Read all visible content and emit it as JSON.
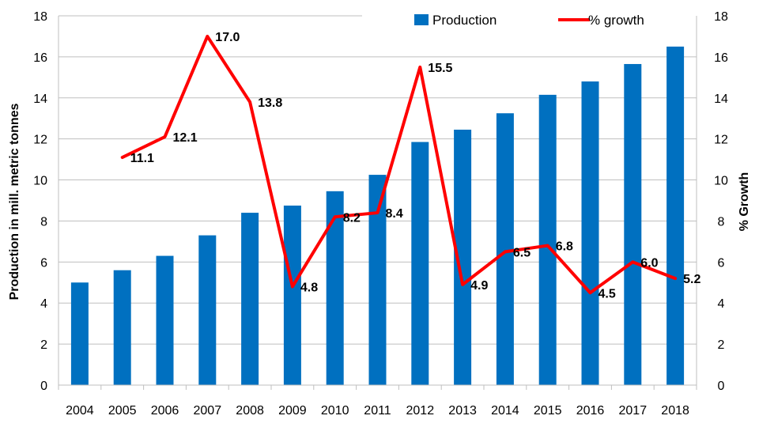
{
  "chart_data": {
    "type": "bar",
    "categories": [
      "2004",
      "2005",
      "2006",
      "2007",
      "2008",
      "2009",
      "2010",
      "2011",
      "2012",
      "2013",
      "2014",
      "2015",
      "2016",
      "2017",
      "2018"
    ],
    "series": [
      {
        "name": "Production",
        "type": "bar",
        "axis": "left",
        "color": "#0070C0",
        "values": [
          5.0,
          5.6,
          6.3,
          7.3,
          8.4,
          8.75,
          9.45,
          10.25,
          11.85,
          12.45,
          13.25,
          14.15,
          14.8,
          15.65,
          16.5
        ]
      },
      {
        "name": "% growth",
        "type": "line",
        "axis": "right",
        "color": "#FF0000",
        "values": [
          null,
          11.1,
          12.1,
          17.0,
          13.8,
          4.8,
          8.2,
          8.4,
          15.5,
          4.9,
          6.5,
          6.8,
          4.5,
          6.0,
          5.2
        ],
        "data_labels": [
          "",
          "11.1",
          "12.1",
          "17.0",
          "13.8",
          "4.8",
          "8.2",
          "8.4",
          "15.5",
          "4.9",
          "6.5",
          "6.8",
          "4.5",
          "6.0",
          "5.2"
        ]
      }
    ],
    "ylabel": "Production in mill. metric tonnes",
    "y2label": "% Growth",
    "ylim": [
      0,
      18
    ],
    "y2lim": [
      0,
      18
    ],
    "yticks": [
      "0",
      "2",
      "4",
      "6",
      "8",
      "10",
      "12",
      "14",
      "16",
      "18"
    ],
    "y2ticks": [
      "0",
      "2",
      "4",
      "6",
      "8",
      "10",
      "12",
      "14",
      "16",
      "18"
    ],
    "grid": true,
    "legend_position": "top-right"
  }
}
